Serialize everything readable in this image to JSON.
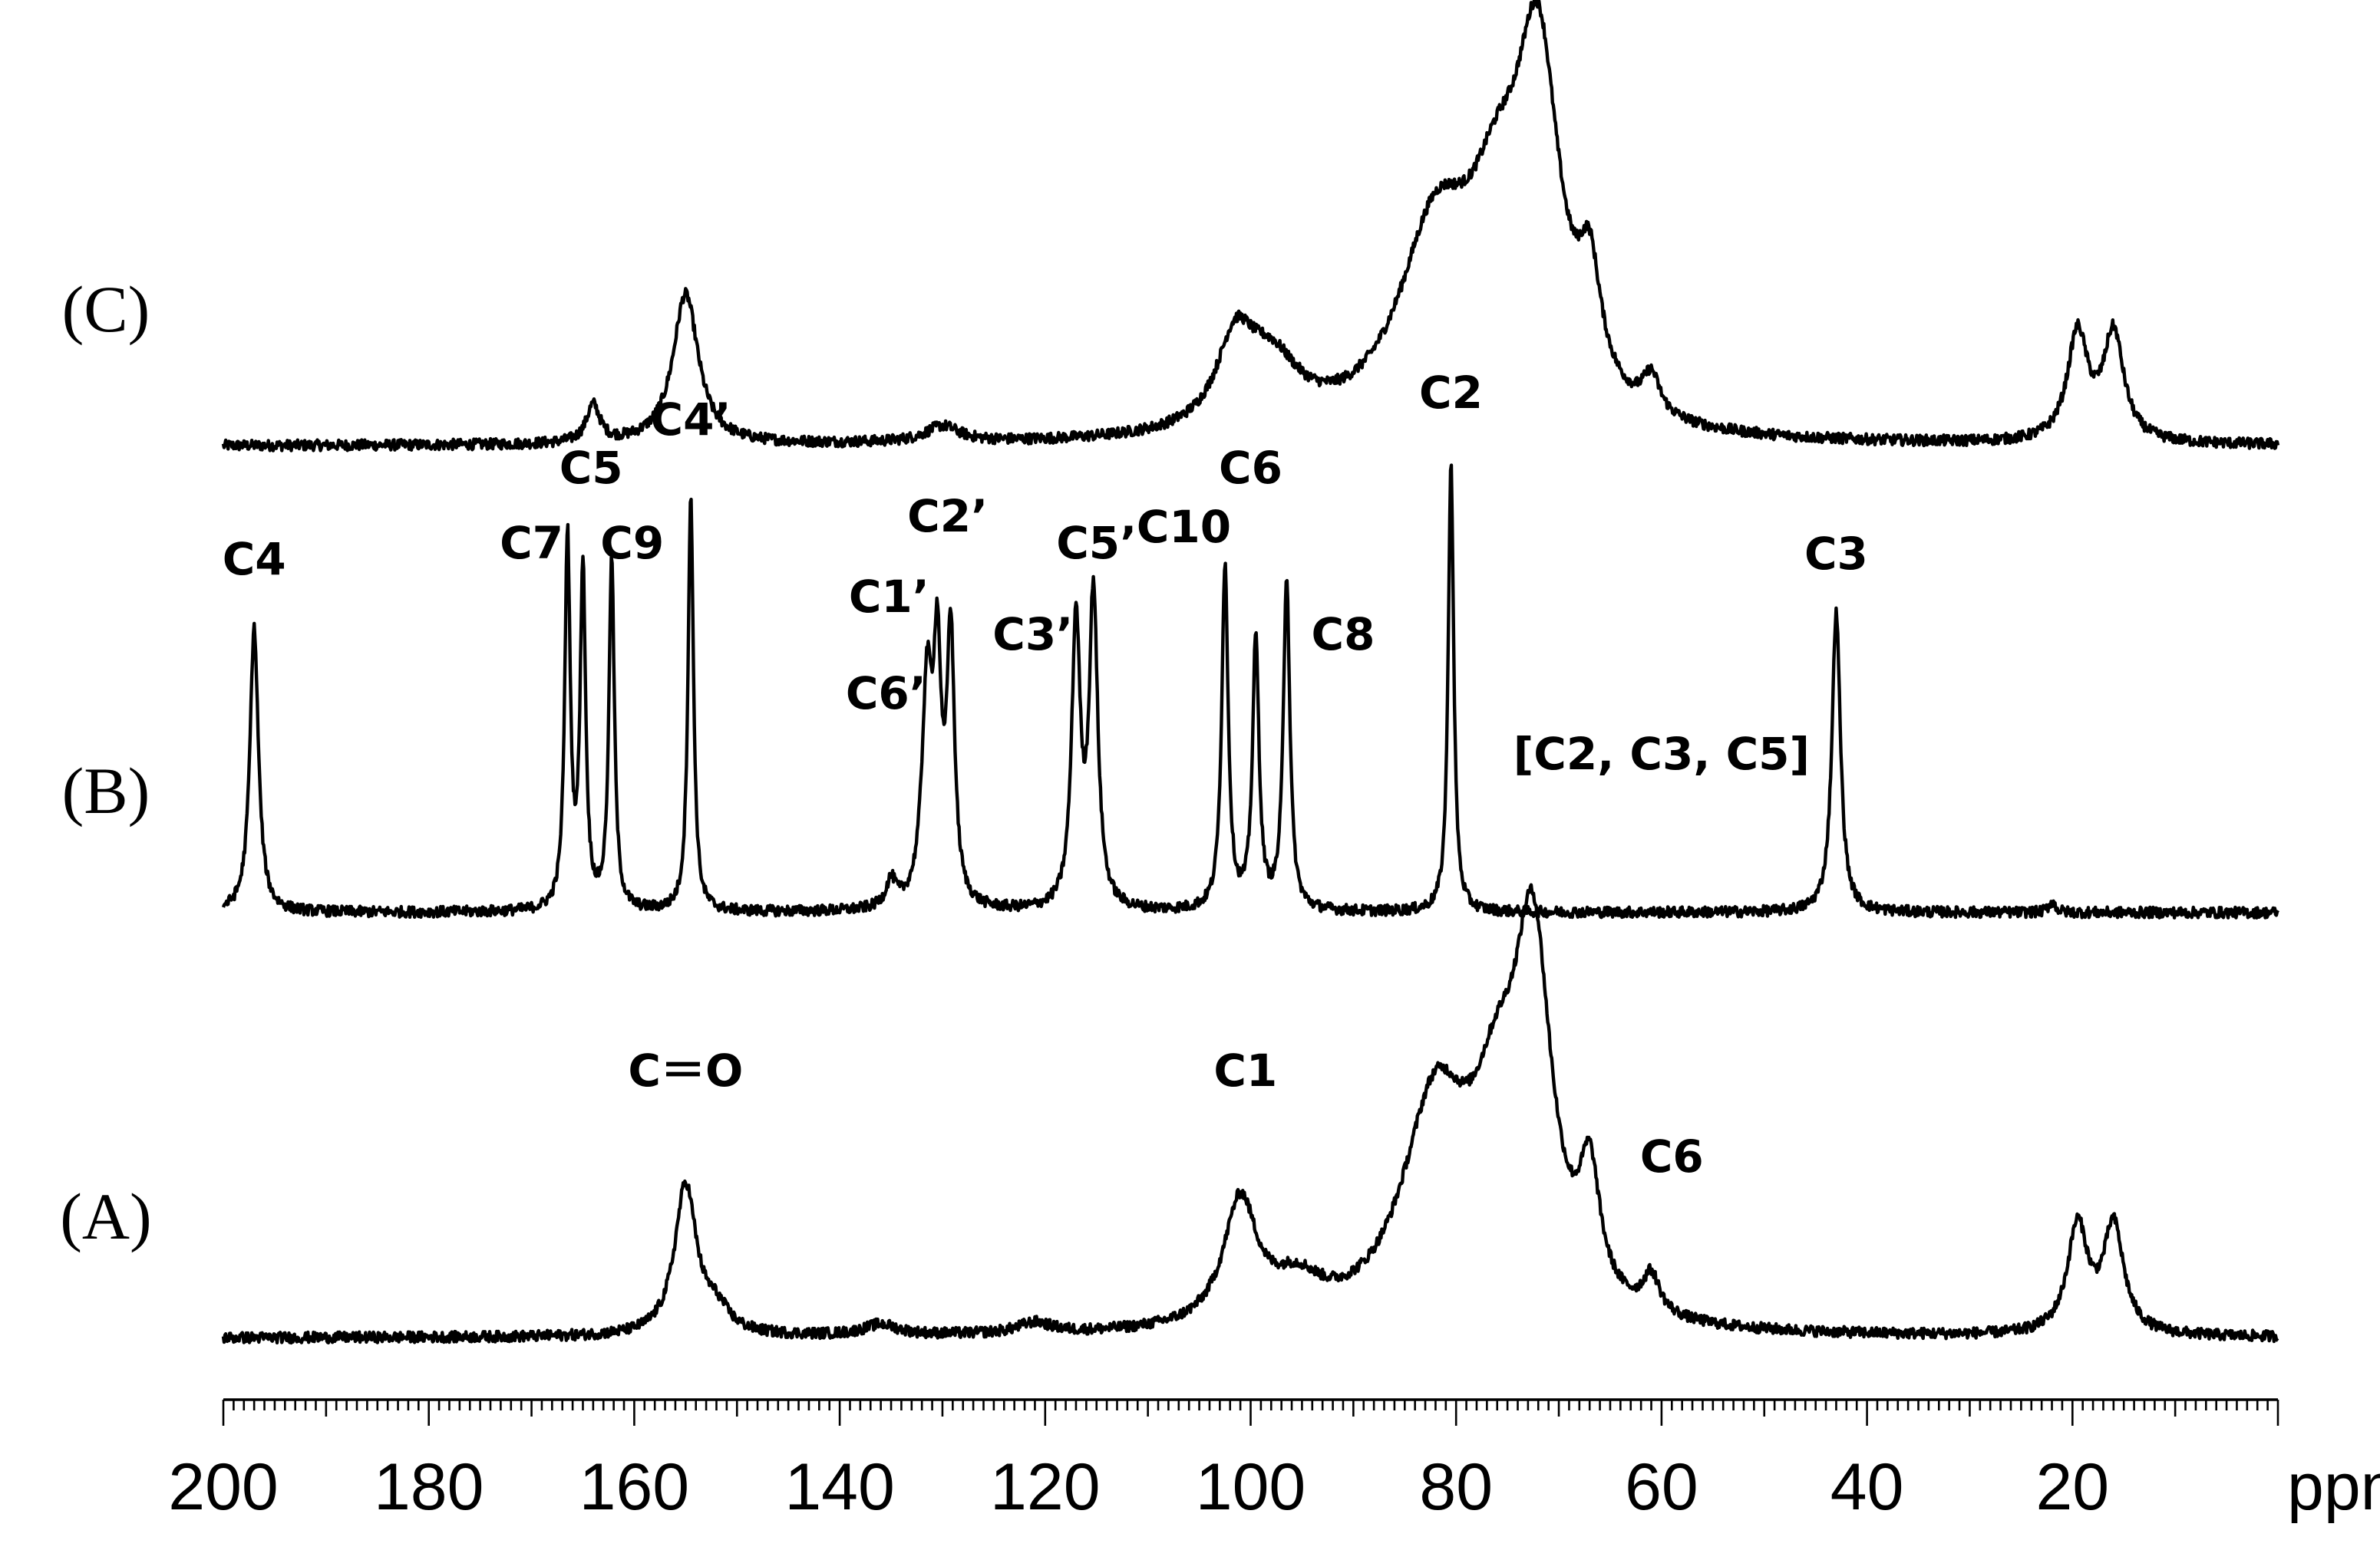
{
  "chart_data": {
    "type": "line",
    "xlabel": "",
    "x_unit": "ppm",
    "xlim": [
      200,
      0
    ],
    "x_reversed": true,
    "x_ticks": [
      200,
      180,
      160,
      140,
      120,
      100,
      80,
      60,
      40,
      20
    ],
    "x_tick_labels": [
      "200",
      "180",
      "160",
      "140",
      "120",
      "100",
      "80",
      "60",
      "40",
      "20"
    ],
    "minor_tick_step": 1,
    "grid": false,
    "series": [
      {
        "name": "(C)",
        "baseline": 0,
        "peaks": [
          {
            "x": 164,
            "h": 0.07,
            "w": 0.8
          },
          {
            "x": 155,
            "h": 0.28,
            "w": 1.5
          },
          {
            "x": 130,
            "h": 0.03,
            "w": 2.0
          },
          {
            "x": 101.5,
            "h": 0.15,
            "w": 2.2
          },
          {
            "x": 98,
            "h": 0.12,
            "w": 3.5
          },
          {
            "x": 82,
            "h": 0.35,
            "w": 4.5
          },
          {
            "x": 76,
            "h": 0.3,
            "w": 3.5
          },
          {
            "x": 72,
            "h": 0.62,
            "w": 2.6
          },
          {
            "x": 67,
            "h": 0.2,
            "w": 1.3
          },
          {
            "x": 61,
            "h": 0.07,
            "w": 1.0
          },
          {
            "x": 19.5,
            "h": 0.2,
            "w": 1.2
          },
          {
            "x": 16,
            "h": 0.2,
            "w": 1.2
          }
        ],
        "labels": []
      },
      {
        "name": "(B)",
        "baseline": 0,
        "peaks": [
          {
            "x": 197,
            "h": 0.53,
            "w": 0.5
          },
          {
            "x": 166.5,
            "h": 0.69,
            "w": 0.32
          },
          {
            "x": 165,
            "h": 0.63,
            "w": 0.32
          },
          {
            "x": 162.2,
            "h": 0.65,
            "w": 0.32
          },
          {
            "x": 154.5,
            "h": 0.77,
            "w": 0.32
          },
          {
            "x": 135,
            "h": 0.05,
            "w": 0.6
          },
          {
            "x": 131.5,
            "h": 0.4,
            "w": 0.6
          },
          {
            "x": 130.5,
            "h": 0.42,
            "w": 0.45
          },
          {
            "x": 129.2,
            "h": 0.5,
            "w": 0.45
          },
          {
            "x": 117,
            "h": 0.53,
            "w": 0.5
          },
          {
            "x": 115.3,
            "h": 0.58,
            "w": 0.5
          },
          {
            "x": 102.5,
            "h": 0.64,
            "w": 0.38
          },
          {
            "x": 99.5,
            "h": 0.5,
            "w": 0.38
          },
          {
            "x": 96.5,
            "h": 0.62,
            "w": 0.38
          },
          {
            "x": 80.5,
            "h": 0.84,
            "w": 0.32
          },
          {
            "x": 43,
            "h": 0.56,
            "w": 0.5
          },
          {
            "x": 22,
            "h": 0.02,
            "w": 0.4
          }
        ],
        "labels": [
          {
            "text": "C4",
            "x": 197,
            "y": 0.63
          },
          {
            "text": "C7",
            "x": 170,
            "y": 0.66
          },
          {
            "text": "C5",
            "x": 164.2,
            "y": 0.8
          },
          {
            "text": "C9",
            "x": 160.2,
            "y": 0.66
          },
          {
            "text": "C4’",
            "x": 154.5,
            "y": 0.89
          },
          {
            "text": "C6’",
            "x": 135.5,
            "y": 0.38
          },
          {
            "text": "C1’",
            "x": 135.2,
            "y": 0.56
          },
          {
            "text": "C2’",
            "x": 129.5,
            "y": 0.71
          },
          {
            "text": "C3’",
            "x": 121.2,
            "y": 0.49
          },
          {
            "text": "C5’",
            "x": 115,
            "y": 0.66
          },
          {
            "text": "C10",
            "x": 106.5,
            "y": 0.69
          },
          {
            "text": "C6",
            "x": 100,
            "y": 0.8
          },
          {
            "text": "C8",
            "x": 91,
            "y": 0.49
          },
          {
            "text": "C2",
            "x": 80.5,
            "y": 0.94
          },
          {
            "text": "C3",
            "x": 43,
            "y": 0.64
          }
        ]
      },
      {
        "name": "(A)",
        "baseline": 0,
        "peaks": [
          {
            "x": 155,
            "h": 0.28,
            "w": 1.3
          },
          {
            "x": 152,
            "h": 0.04,
            "w": 1.5
          },
          {
            "x": 136,
            "h": 0.02,
            "w": 2.0
          },
          {
            "x": 121,
            "h": 0.02,
            "w": 2.0
          },
          {
            "x": 101,
            "h": 0.23,
            "w": 2.0
          },
          {
            "x": 95.5,
            "h": 0.07,
            "w": 3.0
          },
          {
            "x": 82,
            "h": 0.4,
            "w": 4.0
          },
          {
            "x": 76,
            "h": 0.3,
            "w": 3.0
          },
          {
            "x": 72.5,
            "h": 0.63,
            "w": 2.2
          },
          {
            "x": 67,
            "h": 0.22,
            "w": 1.2
          },
          {
            "x": 61,
            "h": 0.07,
            "w": 1.0
          },
          {
            "x": 19.5,
            "h": 0.2,
            "w": 1.2
          },
          {
            "x": 16,
            "h": 0.2,
            "w": 1.2
          }
        ],
        "labels": [
          {
            "text": "C＝O",
            "x": 155,
            "y": 0.47
          },
          {
            "text": "C1",
            "x": 100.5,
            "y": 0.47
          },
          {
            "text": "[C2, C3, C5]",
            "x": 60,
            "y": 1.06
          },
          {
            "text": "C6",
            "x": 59,
            "y": 0.31
          }
        ]
      }
    ]
  }
}
